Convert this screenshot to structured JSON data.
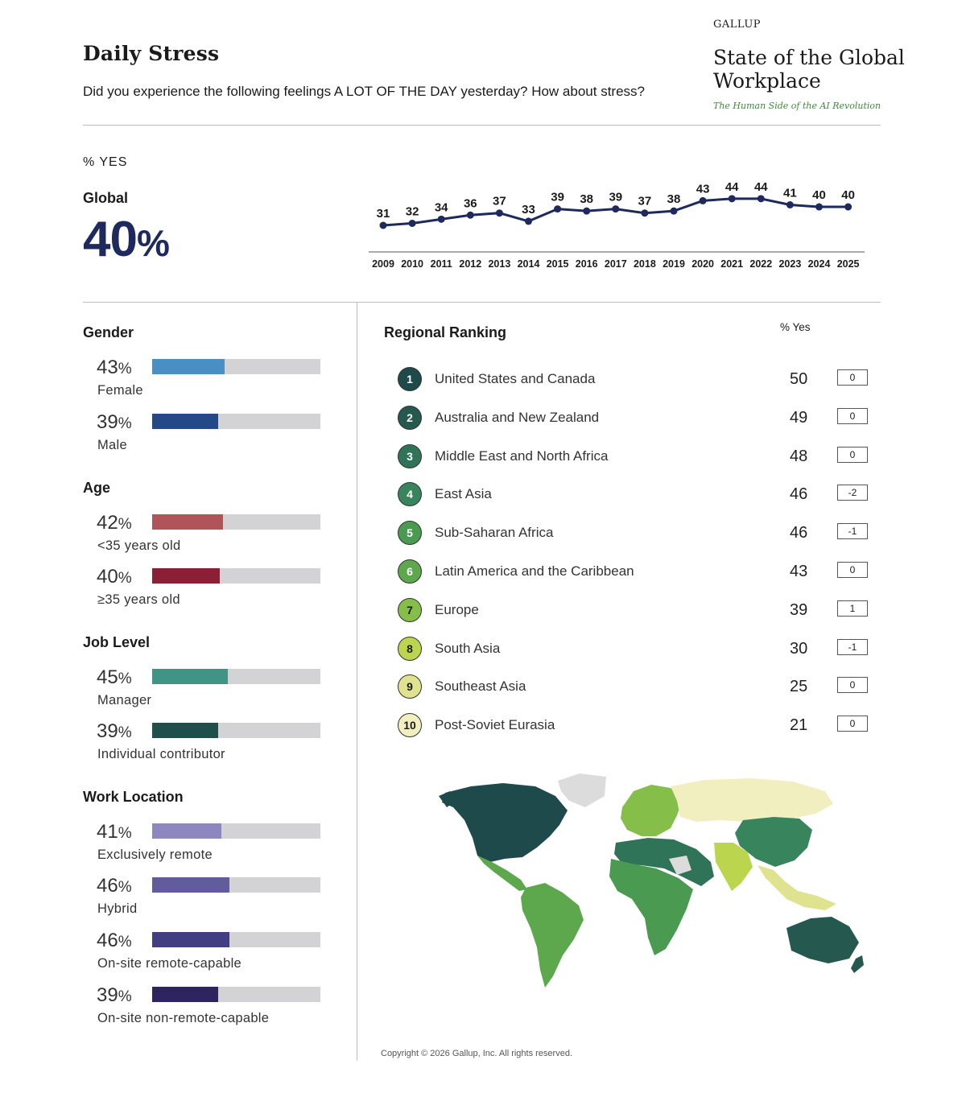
{
  "header": {
    "title": "Daily Stress",
    "question": "Did you experience the following feelings A LOT OF THE DAY yesterday? How about stress?",
    "brand": "GALLUP",
    "report_title": "State of the Global Workplace",
    "report_subtitle": "The Human Side of the AI Revolution"
  },
  "global": {
    "unit_label": "% YES",
    "label": "Global",
    "value": "40",
    "value_unit": "%"
  },
  "groups": [
    {
      "title": "Gender",
      "items": [
        {
          "value": "43",
          "unit": "%",
          "label": "Female",
          "fill": 0.43,
          "color": "#4a8fc4"
        },
        {
          "value": "39",
          "unit": "%",
          "label": "Male",
          "fill": 0.39,
          "color": "#234a86"
        }
      ]
    },
    {
      "title": "Age",
      "items": [
        {
          "value": "42",
          "unit": "%",
          "label": "<35 years old",
          "fill": 0.42,
          "color": "#b0545a"
        },
        {
          "value": "40",
          "unit": "%",
          "label": "≥35 years old",
          "fill": 0.4,
          "color": "#8a1f35"
        }
      ]
    },
    {
      "title": "Job Level",
      "items": [
        {
          "value": "45",
          "unit": "%",
          "label": "Manager",
          "fill": 0.45,
          "color": "#3f9486"
        },
        {
          "value": "39",
          "unit": "%",
          "label": "Individual contributor",
          "fill": 0.39,
          "color": "#1f4f4a"
        }
      ]
    },
    {
      "title": "Work Location",
      "items": [
        {
          "value": "41",
          "unit": "%",
          "label": "Exclusively remote",
          "fill": 0.41,
          "color": "#8c87c0"
        },
        {
          "value": "46",
          "unit": "%",
          "label": "Hybrid",
          "fill": 0.46,
          "color": "#625b9e"
        },
        {
          "value": "46",
          "unit": "%",
          "label": "On-site remote-capable",
          "fill": 0.46,
          "color": "#433d82"
        },
        {
          "value": "39",
          "unit": "%",
          "label": "On-site non-remote-capable",
          "fill": 0.39,
          "color": "#2e2460"
        }
      ]
    }
  ],
  "regional": {
    "title": "Regional Ranking",
    "header": "% Yes",
    "rows": [
      {
        "rank": "1",
        "name": "United States and Canada",
        "value": "50",
        "change": "0",
        "color": "#1f4a4c",
        "text": "#ffffff"
      },
      {
        "rank": "2",
        "name": "Australia and New Zealand",
        "value": "49",
        "change": "0",
        "color": "#25594f",
        "text": "#ffffff"
      },
      {
        "rank": "3",
        "name": "Middle East and North Africa",
        "value": "48",
        "change": "0",
        "color": "#2f7459",
        "text": "#ffffff"
      },
      {
        "rank": "4",
        "name": "East Asia",
        "value": "46",
        "change": "-2",
        "color": "#38855d",
        "text": "#ffffff"
      },
      {
        "rank": "5",
        "name": "Sub-Saharan Africa",
        "value": "46",
        "change": "-1",
        "color": "#4a9a52",
        "text": "#ffffff"
      },
      {
        "rank": "6",
        "name": "Latin America and the Caribbean",
        "value": "43",
        "change": "0",
        "color": "#5da84c",
        "text": "#ffffff"
      },
      {
        "rank": "7",
        "name": "Europe",
        "value": "39",
        "change": "1",
        "color": "#86be4a",
        "text": "#1b1b1b"
      },
      {
        "rank": "8",
        "name": "South Asia",
        "value": "30",
        "change": "-1",
        "color": "#bcd54e",
        "text": "#1b1b1b"
      },
      {
        "rank": "9",
        "name": "Southeast Asia",
        "value": "25",
        "change": "0",
        "color": "#dfe38f",
        "text": "#1b1b1b"
      },
      {
        "rank": "10",
        "name": "Post-Soviet Eurasia",
        "value": "21",
        "change": "0",
        "color": "#f1efbf",
        "text": "#1b1b1b"
      }
    ]
  },
  "chart_data": {
    "type": "line",
    "x": [
      "2009",
      "2010",
      "2011",
      "2012",
      "2013",
      "2014",
      "2015",
      "2016",
      "2017",
      "2018",
      "2019",
      "2020",
      "2021",
      "2022",
      "2023",
      "2024",
      "2025"
    ],
    "series": [
      {
        "values": [
          31,
          32,
          34,
          36,
          37,
          33,
          39,
          38,
          39,
          37,
          38,
          43,
          44,
          44,
          41,
          40,
          40
        ]
      }
    ],
    "color": "#1e2a5e"
  },
  "copyright": "Copyright © 2026 Gallup, Inc. All rights reserved."
}
